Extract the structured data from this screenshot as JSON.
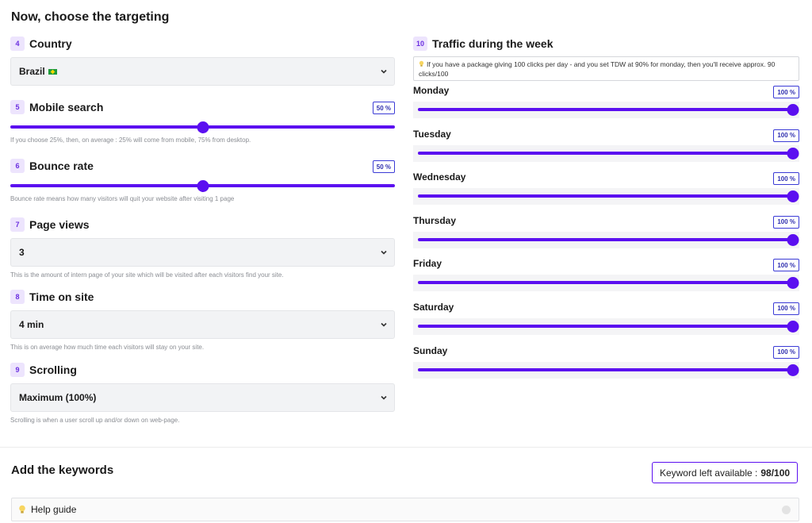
{
  "page_title": "Now, choose the targeting",
  "left": {
    "country": {
      "step": "4",
      "label": "Country",
      "value": "Brazil"
    },
    "mobile": {
      "step": "5",
      "label": "Mobile search",
      "badge": "50 %",
      "value_fraction": 0.5,
      "hint": "If you choose 25%, then, on average : 25% will come from mobile, 75% from desktop."
    },
    "bounce": {
      "step": "6",
      "label": "Bounce rate",
      "badge": "50 %",
      "value_fraction": 0.5,
      "hint": "Bounce rate means how many visitors will quit your website after visiting 1 page"
    },
    "pageviews": {
      "step": "7",
      "label": "Page views",
      "value": "3",
      "hint": "This is the amount of intern page of your site which will be visited after each visitors find your site."
    },
    "time": {
      "step": "8",
      "label": "Time on site",
      "value": "4 min",
      "hint": "This is on average how much time each visitors will stay on your site."
    },
    "scrolling": {
      "step": "9",
      "label": "Scrolling",
      "value": "Maximum (100%)",
      "hint": "Scrolling is when a user scroll up and/or down on web-page."
    }
  },
  "right": {
    "step": "10",
    "label": "Traffic during the week",
    "info_icon": "lightbulb-icon",
    "info": "If you have a package giving 100 clicks per day - and you set TDW at 90% for monday, then you'll receive approx. 90 clicks/100",
    "days": [
      {
        "name": "Monday",
        "badge": "100 %",
        "value_fraction": 1.0
      },
      {
        "name": "Tuesday",
        "badge": "100 %",
        "value_fraction": 1.0
      },
      {
        "name": "Wednesday",
        "badge": "100 %",
        "value_fraction": 1.0
      },
      {
        "name": "Thursday",
        "badge": "100 %",
        "value_fraction": 1.0
      },
      {
        "name": "Friday",
        "badge": "100 %",
        "value_fraction": 1.0
      },
      {
        "name": "Saturday",
        "badge": "100 %",
        "value_fraction": 1.0
      },
      {
        "name": "Sunday",
        "badge": "100 %",
        "value_fraction": 1.0
      }
    ]
  },
  "keywords": {
    "title": "Add the keywords",
    "left_label": "Keyword left available :",
    "left_value": "98/100",
    "help_label": "Help guide"
  },
  "colors": {
    "accent": "#5b0ff0",
    "badge_bg": "#ede4fd"
  }
}
